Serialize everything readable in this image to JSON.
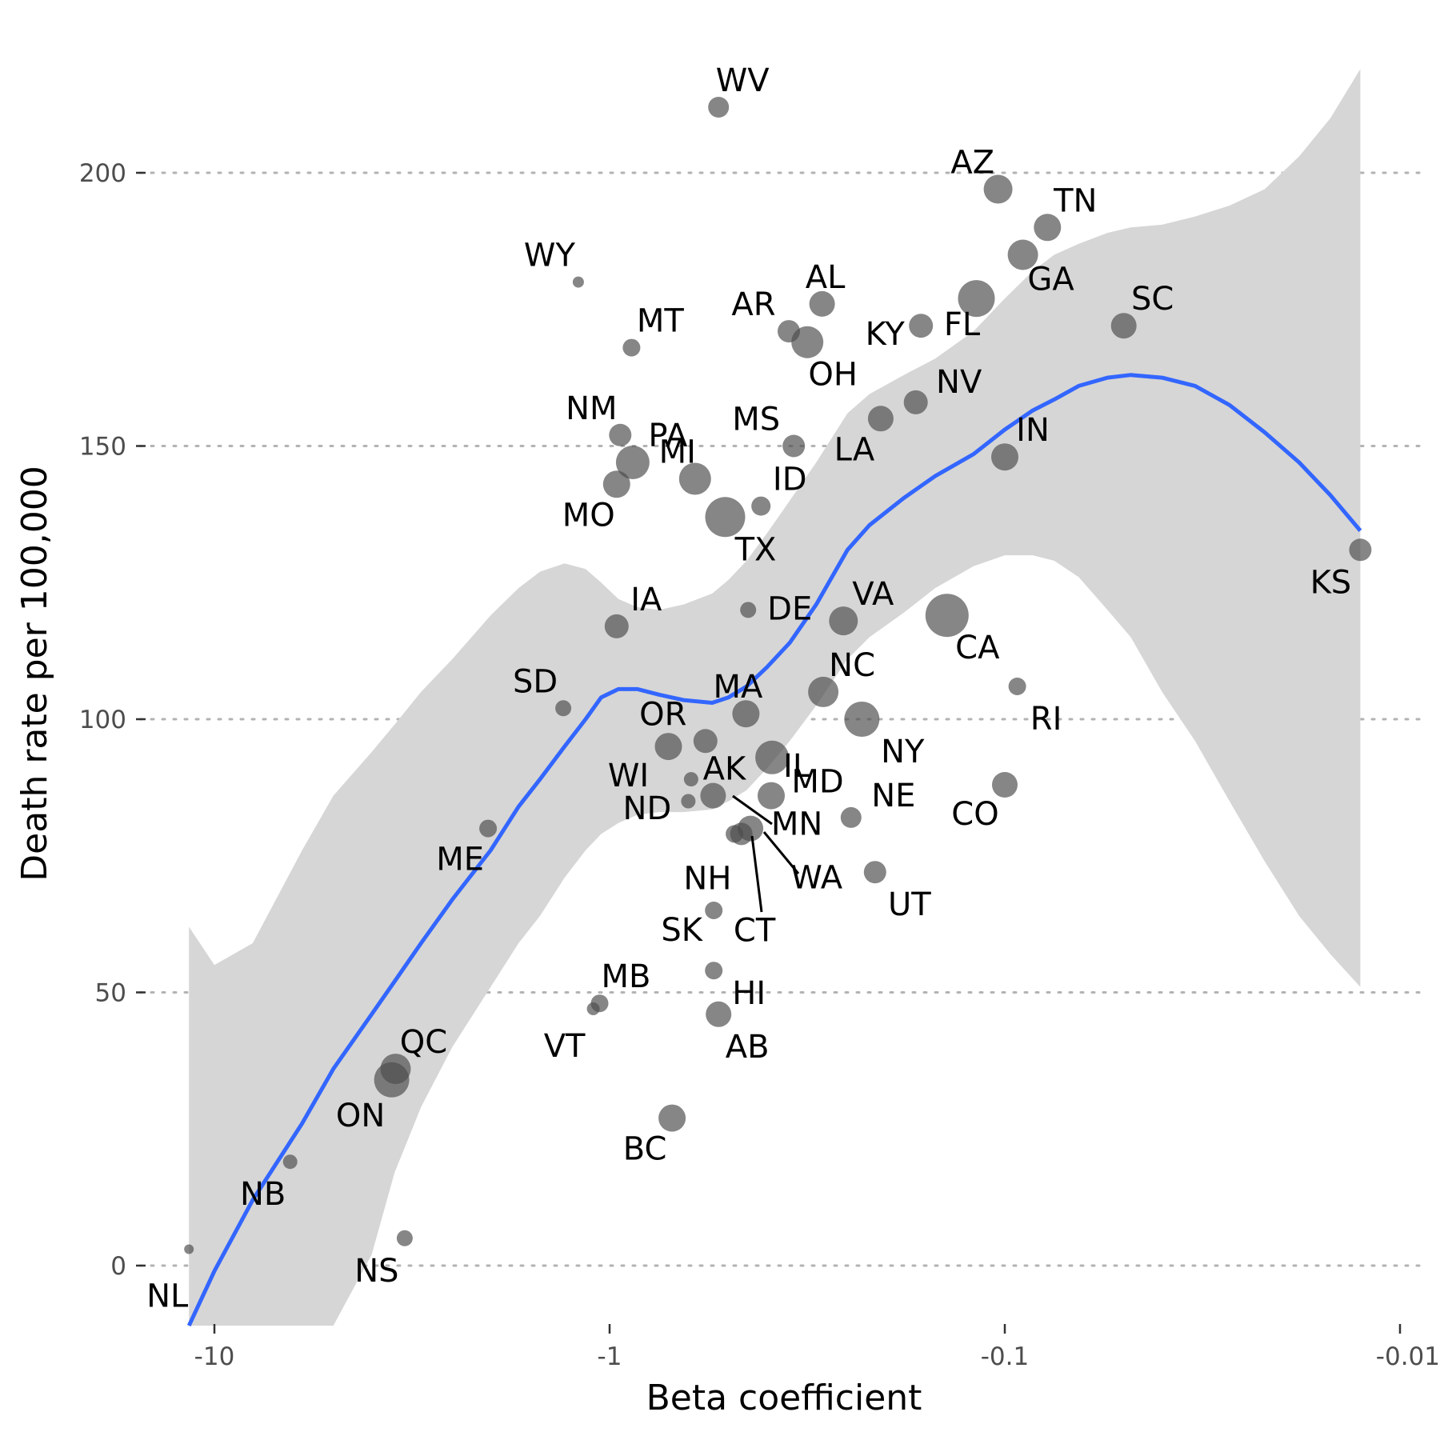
{
  "chart_data": {
    "type": "scatter",
    "title": "",
    "xlabel": "Beta coefficient",
    "ylabel": "Death rate per 100,000",
    "x_scale": "log (negated values)",
    "x_ticks": [
      -10,
      -1,
      -0.1,
      -0.01
    ],
    "x_tick_labels": [
      "-10",
      "-1",
      "-0.1",
      "-0.01"
    ],
    "y_ticks": [
      0,
      50,
      100,
      150,
      200
    ],
    "y_tick_labels": [
      "0",
      "50",
      "100",
      "150",
      "200"
    ],
    "xlim": [
      -12.5,
      -0.01
    ],
    "ylim": [
      -11,
      225
    ],
    "grid": "horizontal dotted",
    "legend": "none",
    "colors": {
      "points": "#4d4d4d",
      "smooth": "#3366ff",
      "band": "#d6d6d6",
      "grid": "#b3b3b3"
    },
    "points": [
      {
        "label": "WV",
        "x": -0.53,
        "y": 212,
        "size": 13
      },
      {
        "label": "AZ",
        "x": -0.104,
        "y": 197,
        "size": 18
      },
      {
        "label": "TN",
        "x": -0.078,
        "y": 190,
        "size": 17
      },
      {
        "label": "GA",
        "x": -0.09,
        "y": 185,
        "size": 19
      },
      {
        "label": "WY",
        "x": -1.2,
        "y": 180,
        "size": 7
      },
      {
        "label": "FL",
        "x": -0.118,
        "y": 177,
        "size": 23
      },
      {
        "label": "AL",
        "x": -0.29,
        "y": 176,
        "size": 16
      },
      {
        "label": "SC",
        "x": -0.05,
        "y": 172,
        "size": 16
      },
      {
        "label": "KY",
        "x": -0.163,
        "y": 172,
        "size": 15
      },
      {
        "label": "AR",
        "x": -0.352,
        "y": 171,
        "size": 14
      },
      {
        "label": "OH",
        "x": -0.316,
        "y": 169,
        "size": 20
      },
      {
        "label": "MT",
        "x": -0.88,
        "y": 168,
        "size": 11
      },
      {
        "label": "NV",
        "x": -0.168,
        "y": 158,
        "size": 15
      },
      {
        "label": "LA",
        "x": -0.206,
        "y": 155,
        "size": 16
      },
      {
        "label": "NM",
        "x": -0.94,
        "y": 152,
        "size": 14
      },
      {
        "label": "MS",
        "x": -0.342,
        "y": 150,
        "size": 14
      },
      {
        "label": "IN",
        "x": -0.1,
        "y": 148,
        "size": 17
      },
      {
        "label": "PA",
        "x": -0.874,
        "y": 147,
        "size": 21
      },
      {
        "label": "MI",
        "x": -0.608,
        "y": 144,
        "size": 20
      },
      {
        "label": "MO",
        "x": -0.96,
        "y": 143,
        "size": 17
      },
      {
        "label": "ID",
        "x": -0.414,
        "y": 139,
        "size": 12
      },
      {
        "label": "TX",
        "x": -0.51,
        "y": 137,
        "size": 25
      },
      {
        "label": "KS",
        "x": -0.0126,
        "y": 131,
        "size": 14
      },
      {
        "label": "DE",
        "x": -0.446,
        "y": 120,
        "size": 10
      },
      {
        "label": "CA",
        "x": -0.14,
        "y": 119,
        "size": 27
      },
      {
        "label": "VA",
        "x": -0.256,
        "y": 118,
        "size": 18
      },
      {
        "label": "IA",
        "x": -0.96,
        "y": 117,
        "size": 15
      },
      {
        "label": "RI",
        "x": -0.093,
        "y": 106,
        "size": 11
      },
      {
        "label": "NC",
        "x": -0.288,
        "y": 105,
        "size": 19
      },
      {
        "label": "SD",
        "x": -1.31,
        "y": 102,
        "size": 10
      },
      {
        "label": "MA",
        "x": -0.452,
        "y": 101,
        "size": 17
      },
      {
        "label": "NY",
        "x": -0.23,
        "y": 100,
        "size": 22
      },
      {
        "label": "OR",
        "x": -0.572,
        "y": 96,
        "size": 15
      },
      {
        "label": "WI",
        "x": -0.71,
        "y": 95,
        "size": 17
      },
      {
        "label": "IL",
        "x": -0.388,
        "y": 93,
        "size": 21
      },
      {
        "label": "ND",
        "x": -0.622,
        "y": 89,
        "size": 9
      },
      {
        "label": "CO",
        "x": -0.1,
        "y": 88,
        "size": 16
      },
      {
        "label": "AK",
        "x": -0.547,
        "y": 86,
        "size": 16
      },
      {
        "label": "MD",
        "x": -0.39,
        "y": 86,
        "size": 17
      },
      {
        "label": "MN",
        "x": -0.44,
        "y": 80,
        "size": 16
      },
      {
        "label": "NE",
        "x": -0.245,
        "y": 82,
        "size": 13
      },
      {
        "label": "ME",
        "x": -2.03,
        "y": 80,
        "size": 11
      },
      {
        "label": "NH",
        "x": -0.632,
        "y": 85,
        "size": 9
      },
      {
        "label": "WA",
        "x": -0.464,
        "y": 79,
        "size": 14
      },
      {
        "label": "CT",
        "x": -0.483,
        "y": 79,
        "size": 11
      },
      {
        "label": "UT",
        "x": -0.213,
        "y": 72,
        "size": 14
      },
      {
        "label": "SK",
        "x": -0.545,
        "y": 65,
        "size": 11
      },
      {
        "label": "HI",
        "x": -0.545,
        "y": 54,
        "size": 11
      },
      {
        "label": "MB",
        "x": -1.06,
        "y": 48,
        "size": 11
      },
      {
        "label": "VT",
        "x": -1.1,
        "y": 47,
        "size": 8
      },
      {
        "label": "AB",
        "x": -0.53,
        "y": 46,
        "size": 16
      },
      {
        "label": "QC",
        "x": -3.48,
        "y": 36,
        "size": 19
      },
      {
        "label": "ON",
        "x": -3.56,
        "y": 34,
        "size": 22
      },
      {
        "label": "BC",
        "x": -0.695,
        "y": 27,
        "size": 17
      },
      {
        "label": "NB",
        "x": -6.43,
        "y": 19,
        "size": 9
      },
      {
        "label": "NS",
        "x": -3.3,
        "y": 5,
        "size": 10
      },
      {
        "label": "NL",
        "x": -11.6,
        "y": 3,
        "size": 6
      }
    ],
    "smooth": {
      "x": [
        -11.6,
        -10,
        -8,
        -6,
        -5,
        -4,
        -3.5,
        -3,
        -2.5,
        -2,
        -1.7,
        -1.5,
        -1.3,
        -1.15,
        -1.05,
        -0.95,
        -0.85,
        -0.75,
        -0.65,
        -0.55,
        -0.5,
        -0.45,
        -0.4,
        -0.35,
        -0.3,
        -0.25,
        -0.22,
        -0.18,
        -0.15,
        -0.12,
        -0.1,
        -0.085,
        -0.075,
        -0.065,
        -0.055,
        -0.048,
        -0.04,
        -0.033,
        -0.027,
        -0.022,
        -0.018,
        -0.015,
        -0.0126
      ],
      "y": [
        -11,
        -1,
        12,
        26,
        36,
        46,
        52,
        59,
        67,
        76,
        84,
        89,
        95,
        100,
        104,
        105.5,
        105.5,
        104.5,
        103.5,
        103,
        104,
        106,
        109.5,
        114,
        121,
        131,
        135.5,
        140.5,
        144.5,
        148.5,
        153,
        156.5,
        158.5,
        161,
        162.5,
        163,
        162.5,
        161,
        157.5,
        152.5,
        147,
        141,
        134.5
      ],
      "lower": [
        -11,
        -11,
        -11,
        -11,
        -11,
        2,
        17,
        29,
        40,
        51,
        59,
        64,
        71,
        76,
        79,
        81,
        82.5,
        83,
        83,
        83.5,
        85,
        87,
        91,
        96,
        102.5,
        111,
        115,
        119.5,
        124,
        128,
        130,
        130,
        129,
        126,
        120,
        115,
        105,
        96,
        85,
        74,
        64,
        57,
        51
      ],
      "upper": [
        62,
        55,
        59,
        76,
        86,
        94,
        99,
        105,
        111,
        119,
        124,
        127,
        128.5,
        127.5,
        125,
        122,
        120.5,
        120,
        121,
        123,
        125.5,
        129,
        134,
        140,
        147,
        156,
        159.5,
        163,
        166,
        171,
        177,
        182,
        185,
        187,
        189,
        190,
        190.5,
        192,
        194,
        197,
        203,
        210,
        219
      ]
    }
  }
}
